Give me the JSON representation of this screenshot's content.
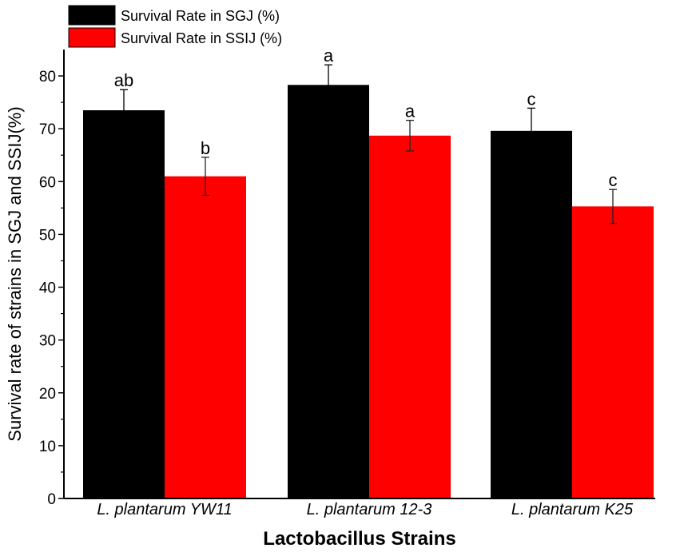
{
  "chart_data": {
    "type": "bar",
    "categories": [
      "L. plantarum YW11",
      "L. plantarum 12-3",
      "L. plantarum K25"
    ],
    "series": [
      {
        "name": "Survival Rate in SGJ (%)",
        "color": "#000000",
        "values": [
          73.5,
          78.3,
          69.6
        ],
        "errors": [
          3.9,
          3.8,
          4.3
        ],
        "significance": [
          "ab",
          "a",
          "c"
        ]
      },
      {
        "name": "Survival Rate in SSIJ (%)",
        "color": "#ff0000",
        "values": [
          61.0,
          68.7,
          55.3
        ],
        "errors": [
          3.6,
          2.9,
          3.2
        ],
        "significance": [
          "b",
          "a",
          "c"
        ]
      }
    ],
    "xlabel": "Lactobacillus Strains",
    "ylabel": "Survival rate of strains in SGJ and SSIJ(%)",
    "ylim": [
      0,
      85
    ],
    "yticks": [
      0,
      10,
      20,
      30,
      40,
      50,
      60,
      70,
      80
    ],
    "grid": false,
    "legend_position": "top-left"
  }
}
